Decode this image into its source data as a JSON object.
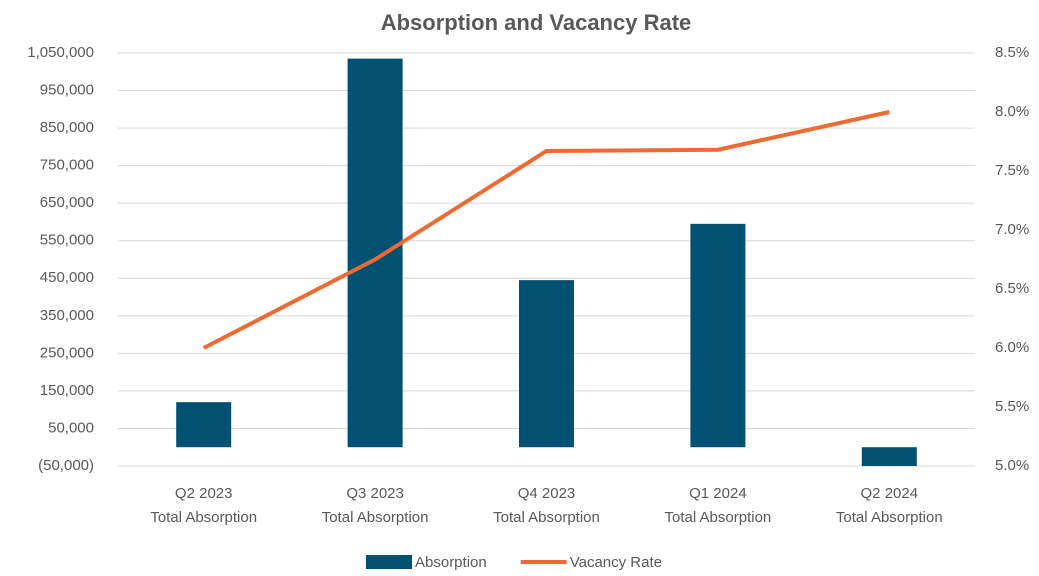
{
  "chart_data": {
    "type": "bar_line",
    "title": "Absorption and Vacancy Rate",
    "categories": [
      [
        "Q2 2023",
        "Total Absorption"
      ],
      [
        "Q3 2023",
        "Total Absorption"
      ],
      [
        "Q4 2023",
        "Total Absorption"
      ],
      [
        "Q1 2024",
        "Total Absorption"
      ],
      [
        "Q2 2024",
        "Total Absorption"
      ]
    ],
    "series": [
      {
        "name": "Absorption",
        "type": "bar",
        "color": "#005172",
        "values": [
          120000,
          1035000,
          445000,
          595000,
          -50000
        ]
      },
      {
        "name": "Vacancy Rate",
        "type": "line",
        "axis": "y2",
        "color": "#ED6A32",
        "values": [
          6.0,
          6.75,
          7.67,
          7.68,
          8.0
        ]
      }
    ],
    "ylim": [
      -50000,
      1050000
    ],
    "yticks": [
      {
        "value": -50000,
        "label": "(50,000)"
      },
      {
        "value": 50000,
        "label": "50,000"
      },
      {
        "value": 150000,
        "label": "150,000"
      },
      {
        "value": 250000,
        "label": "250,000"
      },
      {
        "value": 350000,
        "label": "350,000"
      },
      {
        "value": 450000,
        "label": "450,000"
      },
      {
        "value": 550000,
        "label": "550,000"
      },
      {
        "value": 650000,
        "label": "650,000"
      },
      {
        "value": 750000,
        "label": "750,000"
      },
      {
        "value": 850000,
        "label": "850,000"
      },
      {
        "value": 950000,
        "label": "950,000"
      },
      {
        "value": 1050000,
        "label": "1,050,000"
      }
    ],
    "y2lim": [
      5.0,
      8.5
    ],
    "y2ticks": [
      {
        "value": 5.0,
        "label": "5.0%"
      },
      {
        "value": 5.5,
        "label": "5.5%"
      },
      {
        "value": 6.0,
        "label": "6.0%"
      },
      {
        "value": 6.5,
        "label": "6.5%"
      },
      {
        "value": 7.0,
        "label": "7.0%"
      },
      {
        "value": 7.5,
        "label": "7.5%"
      },
      {
        "value": 8.0,
        "label": "8.0%"
      },
      {
        "value": 8.5,
        "label": "8.5%"
      }
    ],
    "grid": true,
    "legend": "bottom"
  }
}
